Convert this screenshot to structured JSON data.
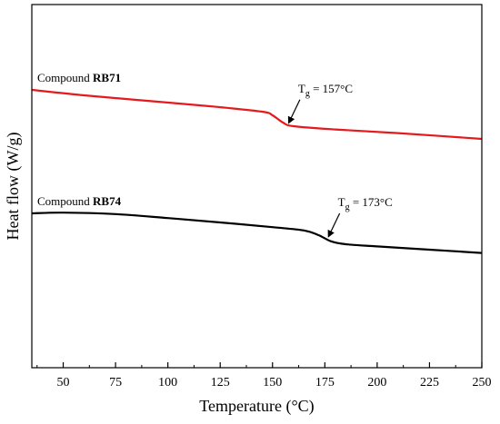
{
  "chart_data": {
    "type": "line",
    "xlabel": "Temperature (°C)",
    "ylabel": "Heat flow (W/g)",
    "xlim": [
      35,
      250
    ],
    "ylim": [
      0,
      100
    ],
    "x_ticks": [
      50,
      75,
      100,
      125,
      150,
      175,
      200,
      225,
      250
    ],
    "y_ticks": [],
    "grid": false,
    "legend": "none",
    "series": [
      {
        "name": "Compound RB71",
        "name_prefix": "Compound ",
        "name_bold": "RB71",
        "color": "#e41a1c",
        "x": [
          35,
          60,
          90,
          120,
          145,
          150,
          155,
          160,
          180,
          210,
          250
        ],
        "y": [
          76.5,
          75.0,
          73.5,
          72.0,
          70.5,
          69.5,
          67.5,
          66.5,
          65.6,
          64.6,
          63.0
        ]
      },
      {
        "name": "Compound RB74",
        "name_prefix": "Compound ",
        "name_bold": "RB74",
        "color": "#000000",
        "x": [
          35,
          50,
          75,
          100,
          125,
          150,
          165,
          172,
          178,
          185,
          200,
          225,
          250
        ],
        "y": [
          42.5,
          42.7,
          42.3,
          41.2,
          40.0,
          38.7,
          37.8,
          36.5,
          34.8,
          34.0,
          33.4,
          32.5,
          31.6
        ]
      }
    ],
    "annotations": [
      {
        "label": "T",
        "subscript": "g",
        "value_text": " = 157°C",
        "x": 157,
        "y": 66.8,
        "series": 0
      },
      {
        "label": "T",
        "subscript": "g",
        "value_text": " = 173°C",
        "x": 176,
        "y": 35.5,
        "series": 1
      }
    ]
  }
}
